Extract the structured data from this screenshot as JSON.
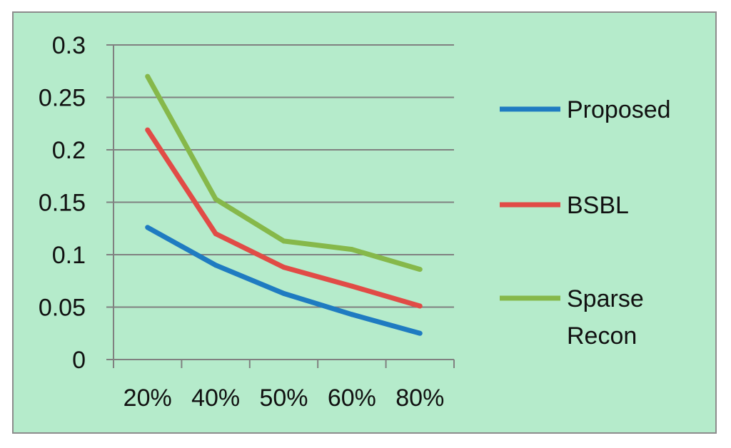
{
  "chart_data": {
    "type": "line",
    "title": "",
    "xlabel": "",
    "ylabel": "",
    "categories": [
      "20%",
      "40%",
      "50%",
      "60%",
      "80%"
    ],
    "ylim": [
      0,
      0.3
    ],
    "yticks": [
      "0",
      "0.05",
      "0.1",
      "0.15",
      "0.2",
      "0.25",
      "0.3"
    ],
    "grid": true,
    "legend_position": "right",
    "series": [
      {
        "name": "Proposed",
        "color": "#1f7bc1",
        "values": [
          0.126,
          0.09,
          0.063,
          0.043,
          0.025
        ]
      },
      {
        "name": "BSBL",
        "color": "#e14b46",
        "values": [
          0.219,
          0.12,
          0.088,
          0.07,
          0.051
        ]
      },
      {
        "name": "Sparse Recon",
        "color": "#86b84a",
        "values": [
          0.27,
          0.153,
          0.113,
          0.105,
          0.086
        ]
      }
    ],
    "background_color": "#b5ebcb",
    "gridline_color": "#808080"
  }
}
